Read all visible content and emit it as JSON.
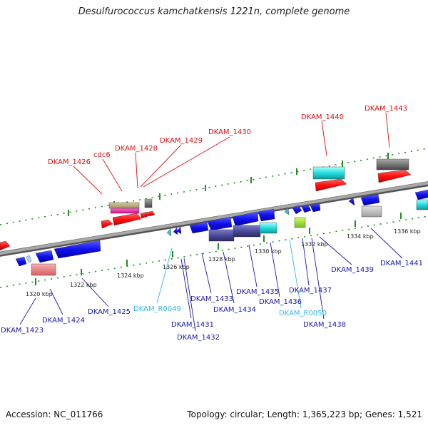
{
  "title": "Desulfurococcus kamchatkensis 1221n, complete genome",
  "footer": {
    "accession": "Accession: NC_011766",
    "topology": "Topology: circular; Length: 1,365,223 bp; Genes: 1,521"
  },
  "colors": {
    "forward_label": "#dd1111",
    "reverse_label": "#1a1aaa",
    "rna_label": "#33b8e8",
    "backbone": "#8c8c8c",
    "tick": "#228b22"
  },
  "scale_ticks": [
    "1320 kbp",
    "1322 kbp",
    "1324 kbp",
    "1326 kbp",
    "1328 kbp",
    "1330 kbp",
    "1332 kbp",
    "1334 kbp",
    "1336 kbp"
  ],
  "upper_labels": [
    "DKAM_1426",
    "cdc6",
    "DKAM_1428",
    "DKAM_1429",
    "DKAM_1430",
    "DKAM_1440",
    "DKAM_1443"
  ],
  "lower_labels": [
    "DKAM_1423",
    "DKAM_1424",
    "DKAM_1425",
    "DKAM_R0049",
    "DKAM_1431",
    "DKAM_1432",
    "DKAM_1433",
    "DKAM_1434",
    "DKAM_1435",
    "DKAM_1436",
    "DKAM_R0050",
    "DKAM_1437",
    "DKAM_1438",
    "DKAM_1439",
    "DKAM_1441"
  ]
}
